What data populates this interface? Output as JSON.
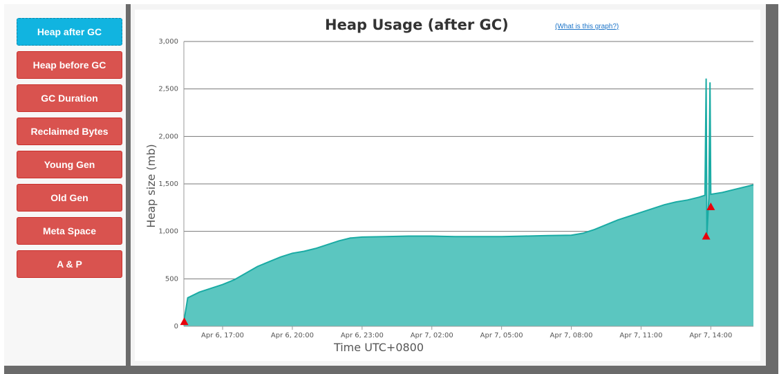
{
  "sidebar": {
    "items": [
      {
        "label": "Heap after GC",
        "active": true
      },
      {
        "label": "Heap before GC",
        "active": false
      },
      {
        "label": "GC Duration",
        "active": false
      },
      {
        "label": "Reclaimed Bytes",
        "active": false
      },
      {
        "label": "Young Gen",
        "active": false
      },
      {
        "label": "Old Gen",
        "active": false
      },
      {
        "label": "Meta Space",
        "active": false
      },
      {
        "label": "A & P",
        "active": false
      }
    ]
  },
  "header": {
    "title": "Heap Usage (after GC)",
    "help_link": "(What is this graph?)"
  },
  "colors": {
    "area_fill": "#5bc6c0",
    "line": "#1aaba4",
    "marker": "#e8000b",
    "active_button": "#11b4e0",
    "button": "#d9534f"
  },
  "chart_data": {
    "type": "area",
    "xlabel": "Time UTC+0800",
    "ylabel": "Heap size (mb)",
    "ylim": [
      0,
      3000
    ],
    "yticks": [
      0,
      500,
      1000,
      1500,
      2000,
      2500,
      3000
    ],
    "ytick_labels": [
      "0",
      "500",
      "1,000",
      "1,500",
      "2,000",
      "2,500",
      "3,000"
    ],
    "x_start": "Apr 6, 15:20",
    "x_end": "Apr 7, 15:50",
    "xtick_labels": [
      "Apr 6, 17:00",
      "Apr 6, 20:00",
      "Apr 6, 23:00",
      "Apr 7, 02:00",
      "Apr 7, 05:00",
      "Apr 7, 08:00",
      "Apr 7, 11:00",
      "Apr 7, 14:00"
    ],
    "grid": true,
    "series": [
      {
        "points": [
          [
            "Apr 6, 15:20",
            50
          ],
          [
            "Apr 6, 15:30",
            300
          ],
          [
            "Apr 6, 16:00",
            360
          ],
          [
            "Apr 6, 16:30",
            400
          ],
          [
            "Apr 6, 17:00",
            440
          ],
          [
            "Apr 6, 17:30",
            490
          ],
          [
            "Apr 6, 18:00",
            560
          ],
          [
            "Apr 6, 18:30",
            630
          ],
          [
            "Apr 6, 19:00",
            680
          ],
          [
            "Apr 6, 19:30",
            730
          ],
          [
            "Apr 6, 20:00",
            770
          ],
          [
            "Apr 6, 20:30",
            790
          ],
          [
            "Apr 6, 21:00",
            820
          ],
          [
            "Apr 6, 21:30",
            860
          ],
          [
            "Apr 6, 22:00",
            900
          ],
          [
            "Apr 6, 22:30",
            930
          ],
          [
            "Apr 6, 23:00",
            940
          ],
          [
            "Apr 7, 00:00",
            945
          ],
          [
            "Apr 7, 01:00",
            950
          ],
          [
            "Apr 7, 02:00",
            950
          ],
          [
            "Apr 7, 03:00",
            945
          ],
          [
            "Apr 7, 04:00",
            945
          ],
          [
            "Apr 7, 05:00",
            945
          ],
          [
            "Apr 7, 06:00",
            950
          ],
          [
            "Apr 7, 07:00",
            955
          ],
          [
            "Apr 7, 08:00",
            960
          ],
          [
            "Apr 7, 08:30",
            980
          ],
          [
            "Apr 7, 09:00",
            1020
          ],
          [
            "Apr 7, 09:30",
            1070
          ],
          [
            "Apr 7, 10:00",
            1120
          ],
          [
            "Apr 7, 10:30",
            1160
          ],
          [
            "Apr 7, 11:00",
            1200
          ],
          [
            "Apr 7, 11:30",
            1240
          ],
          [
            "Apr 7, 12:00",
            1280
          ],
          [
            "Apr 7, 12:30",
            1310
          ],
          [
            "Apr 7, 13:00",
            1330
          ],
          [
            "Apr 7, 13:30",
            1360
          ],
          [
            "Apr 7, 13:45",
            1380
          ],
          [
            "Apr 7, 13:48",
            2610
          ],
          [
            "Apr 7, 13:50",
            960
          ],
          [
            "Apr 7, 13:55",
            1350
          ],
          [
            "Apr 7, 13:58",
            2570
          ],
          [
            "Apr 7, 14:00",
            1390
          ],
          [
            "Apr 7, 14:30",
            1410
          ],
          [
            "Apr 7, 15:00",
            1440
          ],
          [
            "Apr 7, 15:30",
            1470
          ],
          [
            "Apr 7, 15:50",
            1490
          ]
        ]
      }
    ],
    "markers": [
      [
        "Apr 6, 15:21",
        50
      ],
      [
        "Apr 7, 13:48",
        950
      ],
      [
        "Apr 7, 14:00",
        1260
      ]
    ]
  }
}
